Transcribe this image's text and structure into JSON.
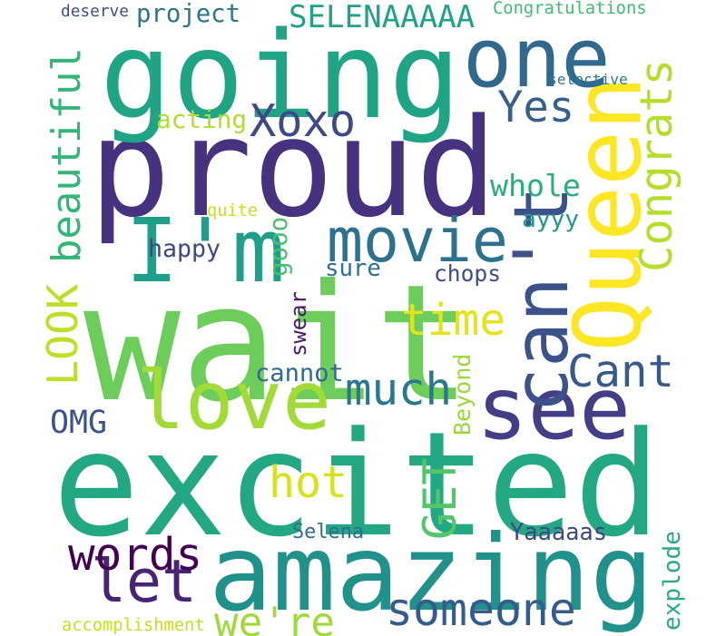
{
  "words": [
    {
      "text": "excited",
      "color": "#23a884"
    },
    {
      "text": "wait",
      "color": "#6ccd5a"
    },
    {
      "text": "proud",
      "color": "#46327e"
    },
    {
      "text": "going",
      "color": "#20a486"
    },
    {
      "text": "amazing",
      "color": "#21918c"
    },
    {
      "text": "see",
      "color": "#433e85"
    },
    {
      "text": "can't",
      "color": "#3b528b"
    },
    {
      "text": "Queen",
      "color": "#fde725"
    },
    {
      "text": "love",
      "color": "#a2da37"
    },
    {
      "text": "I'm",
      "color": "#1f9e89"
    },
    {
      "text": "one",
      "color": "#31688e"
    },
    {
      "text": "movie",
      "color": "#2c728e"
    },
    {
      "text": "let",
      "color": "#482475"
    },
    {
      "text": "someone",
      "color": "#365c8d"
    },
    {
      "text": "words",
      "color": "#440154"
    },
    {
      "text": "much",
      "color": "#2a788e"
    },
    {
      "text": "Cant",
      "color": "#38598c"
    },
    {
      "text": "Congrats",
      "color": "#b5de2b"
    },
    {
      "text": "time",
      "color": "#e5e419"
    },
    {
      "text": "hot",
      "color": "#d8e219"
    },
    {
      "text": "beautiful",
      "color": "#34b679"
    },
    {
      "text": "Xoxo",
      "color": "#3e4989"
    },
    {
      "text": "Yes",
      "color": "#355f8d"
    },
    {
      "text": "LOOK",
      "color": "#bddf26"
    },
    {
      "text": "GET",
      "color": "#54c568"
    },
    {
      "text": "we're",
      "color": "#a0da39"
    },
    {
      "text": "whole",
      "color": "#29af7f"
    },
    {
      "text": "SELENAAAAA",
      "color": "#1fa287"
    },
    {
      "text": "project",
      "color": "#2b758e"
    },
    {
      "text": "OMG",
      "color": "#3a538b"
    },
    {
      "text": "ayyy",
      "color": "#1e9c89"
    },
    {
      "text": "happy",
      "color": "#3f4788"
    },
    {
      "text": "chops",
      "color": "#3d4d8a"
    },
    {
      "text": "acting",
      "color": "#b2dd2d"
    },
    {
      "text": "cannot",
      "color": "#2f6b8e"
    },
    {
      "text": "Selena",
      "color": "#2f6c8e"
    },
    {
      "text": "Yaaaaas",
      "color": "#404688"
    },
    {
      "text": "explode",
      "color": "#25ac82"
    },
    {
      "text": "swear",
      "color": "#481a6c"
    },
    {
      "text": "gooo",
      "color": "#48c16e"
    },
    {
      "text": "sure",
      "color": "#2c718e"
    },
    {
      "text": "Beyond",
      "color": "#9dd93b"
    },
    {
      "text": "selective",
      "color": "#29798e"
    },
    {
      "text": "Congratulations",
      "color": "#3fbc73"
    },
    {
      "text": "deserve",
      "color": "#3b528b"
    },
    {
      "text": "quite",
      "color": "#c8e020"
    },
    {
      "text": "accomplishment",
      "color": "#c5e021"
    }
  ]
}
